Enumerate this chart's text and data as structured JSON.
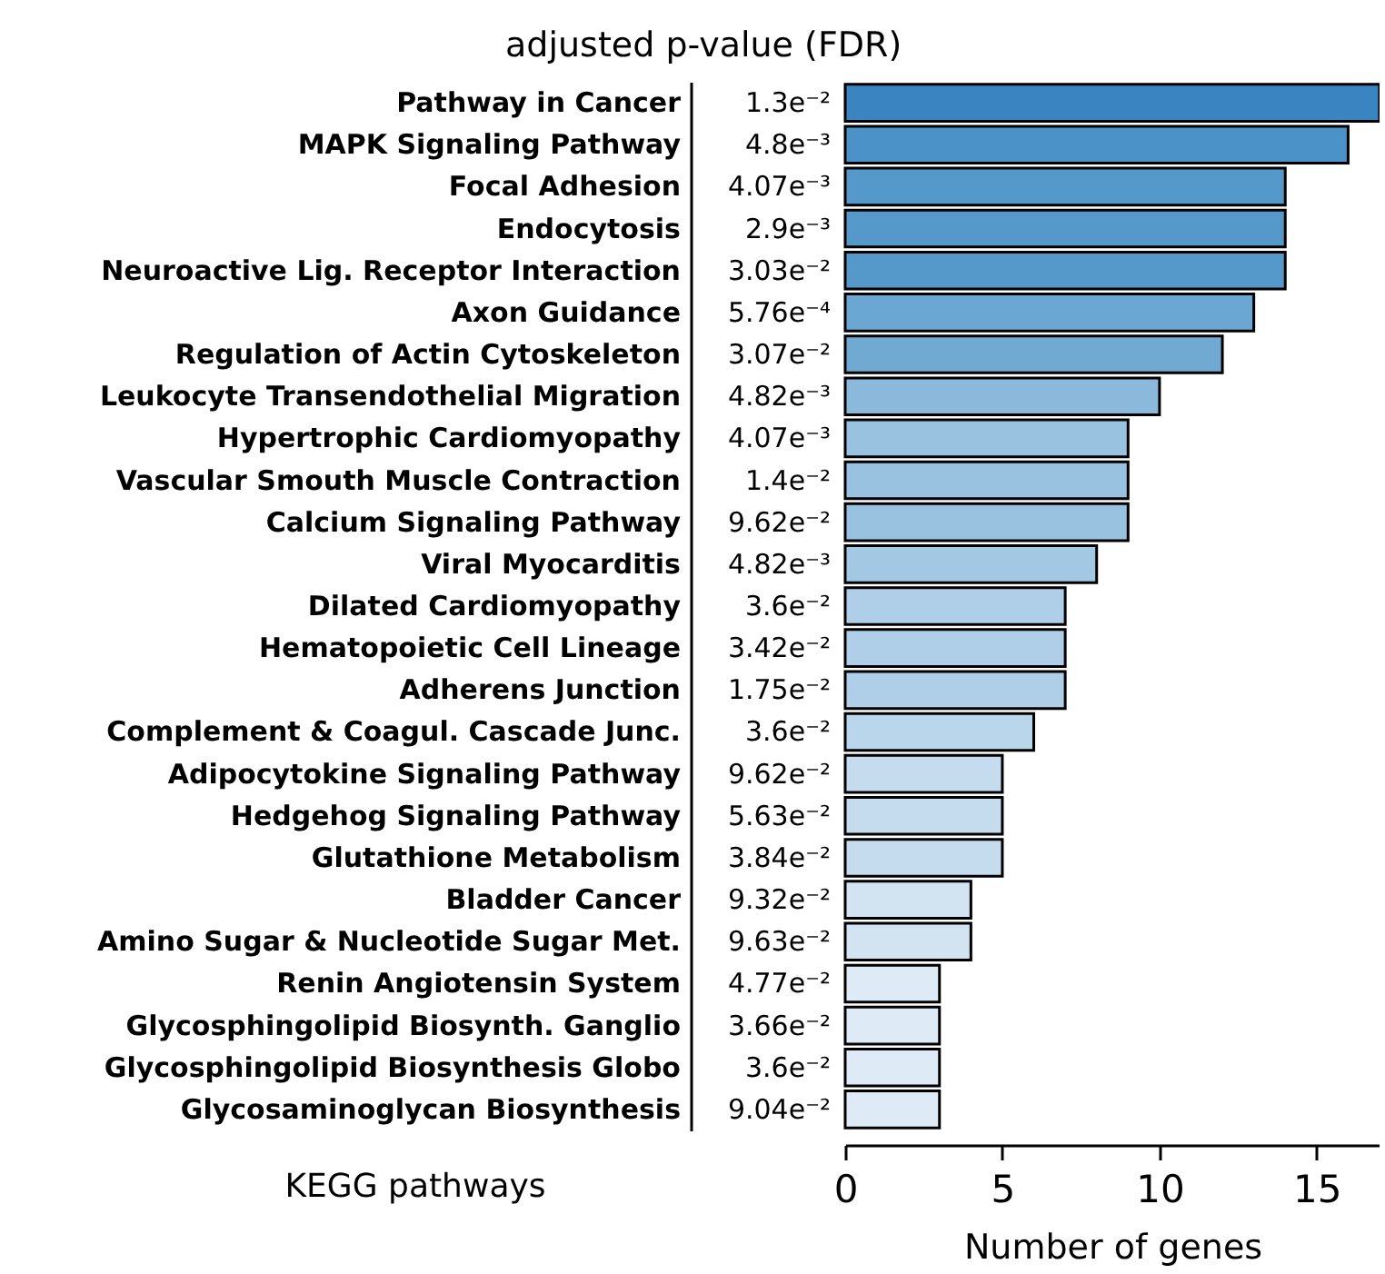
{
  "chart_data": {
    "type": "bar",
    "orientation": "horizontal",
    "title": "adjusted p-value (FDR)",
    "xlabel": "Number of genes",
    "ylabel": "KEGG pathways",
    "categories": [
      "Pathway in Cancer",
      "MAPK Signaling Pathway",
      "Focal Adhesion",
      "Endocytosis",
      "Neuroactive Lig. Receptor Interaction",
      "Axon Guidance",
      "Regulation of Actin Cytoskeleton",
      "Leukocyte Transendothelial Migration",
      "Hypertrophic Cardiomyopathy",
      "Vascular Smouth Muscle Contraction",
      "Calcium Signaling Pathway",
      "Viral Myocarditis",
      "Dilated Cardiomyopathy",
      "Hematopoietic Cell Lineage",
      "Adherens Junction",
      "Complement & Coagul. Cascade Junc.",
      "Adipocytokine Signaling Pathway",
      "Hedgehog Signaling Pathway",
      "Glutathione Metabolism",
      "Bladder Cancer",
      "Amino Sugar & Nucleotide Sugar Met.",
      "Renin Angiotensin System",
      "Glycosphingolipid Biosynth. Ganglio",
      "Glycosphingolipid Biosynthesis Globo",
      "Glycosaminoglycan Biosynthesis"
    ],
    "values": [
      17,
      16,
      14,
      14,
      14,
      13,
      12,
      10,
      9,
      9,
      9,
      8,
      7,
      7,
      7,
      6,
      5,
      5,
      5,
      4,
      4,
      3,
      3,
      3,
      3
    ],
    "annotations": [
      "1.3e⁻²",
      "4.8e⁻³",
      "4.07e⁻³",
      "2.9e⁻³",
      "3.03e⁻²",
      "5.76e⁻⁴",
      "3.07e⁻²",
      "4.82e⁻³",
      "4.07e⁻³",
      "1.4e⁻²",
      "9.62e⁻²",
      "4.82e⁻³",
      "3.6e⁻²",
      "3.42e⁻²",
      "1.75e⁻²",
      "3.6e⁻²",
      "9.62e⁻²",
      "5.63e⁻²",
      "3.84e⁻²",
      "9.32e⁻²",
      "9.63e⁻²",
      "4.77e⁻²",
      "3.66e⁻²",
      "3.6e⁻²",
      "9.04e⁻²"
    ],
    "colors": [
      "#3a84c1",
      "#4a92c7",
      "#5599cb",
      "#5599cb",
      "#5599cb",
      "#6aa7d2",
      "#70aad3",
      "#8ab9dc",
      "#98c2e0",
      "#98c2e0",
      "#98c2e0",
      "#a2c8e3",
      "#aecfe7",
      "#aecfe7",
      "#aecfe7",
      "#b9d6ea",
      "#c4dcee",
      "#c4dcee",
      "#c4dcee",
      "#d2e3f1",
      "#d2e3f1",
      "#deebf7",
      "#deebf7",
      "#deebf7",
      "#deebf7"
    ],
    "xlim": [
      0,
      17
    ],
    "xticks": [
      0,
      5,
      10,
      15
    ],
    "grid": false
  }
}
